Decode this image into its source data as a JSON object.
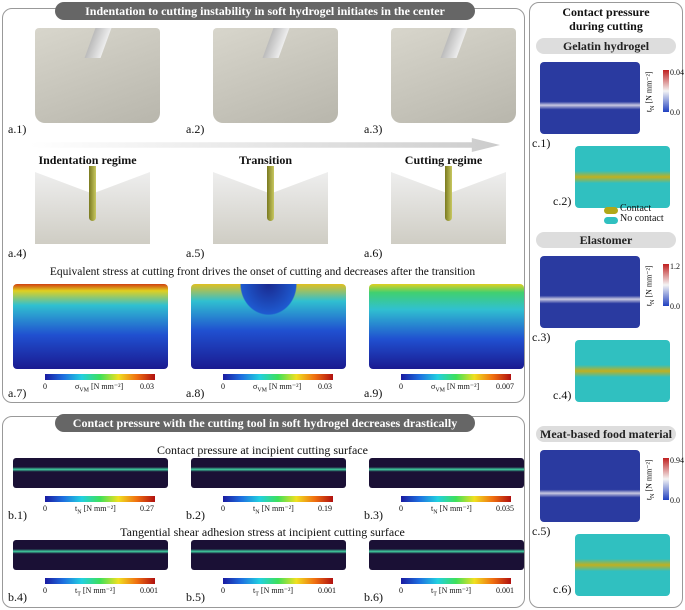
{
  "panel_a": {
    "title": "Indentation to cutting instability in soft hydrogel initiates in the center",
    "images": [
      {
        "label": "a.1)"
      },
      {
        "label": "a.2)"
      },
      {
        "label": "a.3)"
      }
    ],
    "regimes": [
      {
        "name": "Indentation regime",
        "label": "a.4)"
      },
      {
        "name": "Transition",
        "label": "a.5)"
      },
      {
        "name": "Cutting regime",
        "label": "a.6)"
      }
    ],
    "stress_title": "Equivalent stress at cutting front drives the onset of cutting and decreases after the transition",
    "stress_unit": {
      "symbol": "σ",
      "sub": "VM",
      "unit": "[N mm⁻²]"
    },
    "stress_maps": [
      {
        "label": "a.7)",
        "ticks": [
          "0",
          "0.03"
        ]
      },
      {
        "label": "a.8)",
        "ticks": [
          "0",
          "0.03"
        ]
      },
      {
        "label": "a.9)",
        "ticks": [
          "0",
          "0.007"
        ]
      }
    ]
  },
  "panel_b": {
    "title": "Contact pressure with the cutting tool in soft hydrogel decreases drastically",
    "pressure_title": "Contact pressure at incipient cutting surface",
    "pressure_unit": {
      "symbol": "t",
      "sub": "N",
      "unit": "[N mm⁻²]"
    },
    "pressure_maps": [
      {
        "label": "b.1)",
        "ticks": [
          "0",
          "0.27"
        ]
      },
      {
        "label": "b.2)",
        "ticks": [
          "0",
          "0.19"
        ]
      },
      {
        "label": "b.3)",
        "ticks": [
          "0",
          "0.035"
        ]
      }
    ],
    "shear_title": "Tangential shear adhesion stress at incipient cutting surface",
    "shear_unit": {
      "symbol": "t",
      "sub": "T",
      "unit": "[N mm⁻²]"
    },
    "shear_maps": [
      {
        "label": "b.4)",
        "ticks": [
          "0",
          "0.001"
        ]
      },
      {
        "label": "b.5)",
        "ticks": [
          "0",
          "0.001"
        ]
      },
      {
        "label": "b.6)",
        "ticks": [
          "0",
          "0.001"
        ]
      }
    ]
  },
  "panel_c": {
    "title_lines": [
      "Contact pressure",
      "during cutting"
    ],
    "unit": {
      "symbol": "t",
      "sub": "N",
      "unit": "[N mm⁻²]"
    },
    "legend": [
      "Contact",
      "No contact"
    ],
    "materials": [
      {
        "name": "Gelatin hydrogel",
        "map_label": "c.1)",
        "ticks": [
          "0.04",
          "0.0"
        ],
        "contact_label": "c.2)"
      },
      {
        "name": "Elastomer",
        "map_label": "c.3)",
        "ticks": [
          "1.2",
          "0.0"
        ],
        "contact_label": "c.4)"
      },
      {
        "name": "Meat-based food material",
        "map_label": "c.5)",
        "ticks": [
          "0.94",
          "0.0"
        ],
        "contact_label": "c.6)"
      }
    ]
  }
}
